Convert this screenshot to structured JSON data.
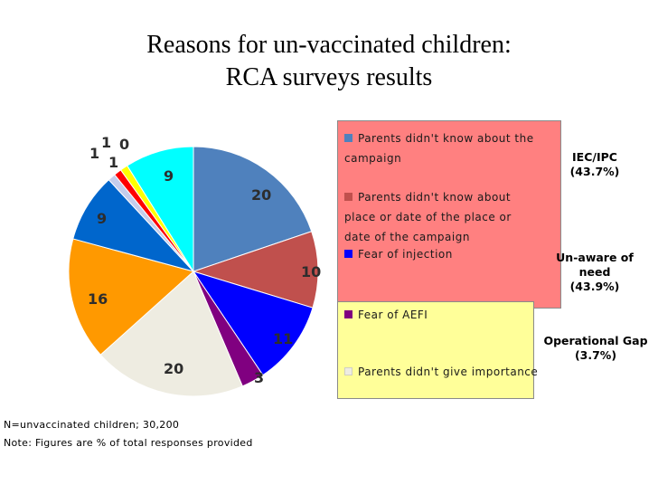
{
  "chart_data": {
    "type": "pie",
    "title_lines": [
      "Reasons for un-vaccinated children:",
      "RCA surveys results"
    ],
    "slices": [
      {
        "label": "Parents didn't know about the campaign",
        "value": 20,
        "color": "#4f81bd"
      },
      {
        "label": "Parents didn't know about place or date of the place or date of the campaign",
        "value": 10,
        "color": "#c0504d"
      },
      {
        "label": "Fear of injection",
        "value": 11,
        "color": "#0000ff"
      },
      {
        "label": "Fear of AEFI",
        "value": 3,
        "color": "#800080"
      },
      {
        "label": "Parents didn't give importance",
        "value": 20,
        "color": "#eeece1"
      },
      {
        "label": "",
        "value": 16,
        "color": "#ff9900"
      },
      {
        "label": "",
        "value": 9,
        "color": "#0066cc"
      },
      {
        "label": "",
        "value": 1,
        "color": "#c5cdec"
      },
      {
        "label": "",
        "value": 1,
        "color": "#ff0000"
      },
      {
        "label": "",
        "value": 1,
        "color": "#ffff00"
      },
      {
        "label": "",
        "value": 0,
        "color": "#008000"
      },
      {
        "label": "",
        "value": 9,
        "color": "#00ffff"
      }
    ],
    "data_label_text": [
      "20",
      "10",
      "11",
      "3",
      "20",
      "16",
      "9",
      "1",
      "1",
      "1",
      "0",
      "9"
    ],
    "groups": [
      {
        "name": "IEC/IPC",
        "pct": "(43.7%)",
        "color": "#ff8080"
      },
      {
        "name": "Un-aware of need",
        "pct": "(43.9%)",
        "color": "#ff8080"
      },
      {
        "name": "Operational Gap",
        "pct": "(3.7%)",
        "color": "#ffff99"
      }
    ]
  },
  "legend": [
    {
      "label": "Parents didn't know about the campaign",
      "color": "#4f81bd"
    },
    {
      "label": "Parents didn't know about place or date of the place or date of the campaign",
      "color": "#c0504d"
    },
    {
      "label": "Fear of injection",
      "color": "#0000ff"
    },
    {
      "label": "Fear of AEFI",
      "color": "#800080"
    },
    {
      "label": "Parents didn't give importance",
      "color": "#eeece1"
    }
  ],
  "footnotes": {
    "n": "N=unvaccinated children; 30,200",
    "note": "Note: Figures are % of total responses provided"
  }
}
